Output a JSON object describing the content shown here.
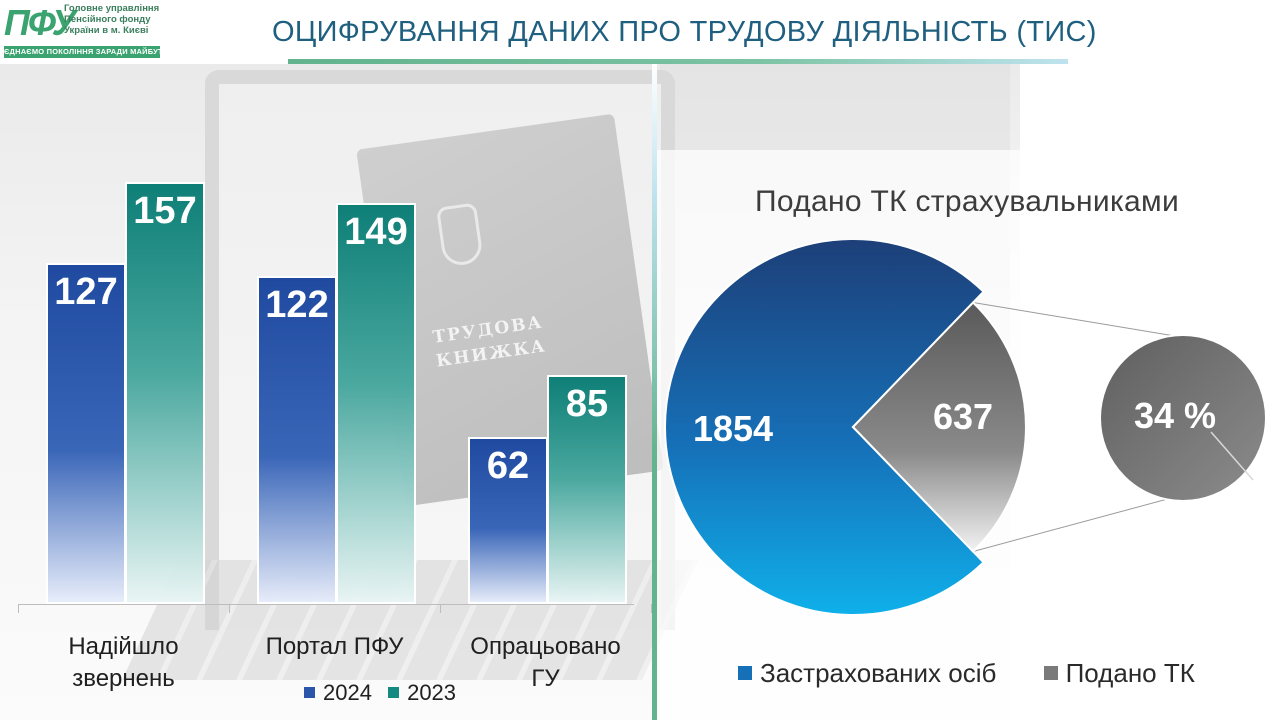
{
  "header": {
    "title": "ОЦИФРУВАННЯ ДАНИХ ПРО ТРУДОВУ ДІЯЛЬНІСТЬ (ТИС)",
    "logo": {
      "mark": "ПФУ",
      "line1": "Головне управління",
      "line2": "Пенсійного фонду",
      "line3": "України в м. Києві",
      "strip": "ЄДНАЄМО ПОКОЛІННЯ ЗАРАДИ МАЙБУТНЬОГО"
    }
  },
  "background": {
    "book_text_line1": "ТРУДОВА",
    "book_text_line2": "КНИЖКА"
  },
  "chart_data": [
    {
      "type": "bar",
      "categories": [
        "Надійшло звернень",
        "Портал ПФУ",
        "Опрацьовано ГУ"
      ],
      "series": [
        {
          "name": "2024",
          "values": [
            127,
            122,
            62
          ],
          "color": "#2b55a8"
        },
        {
          "name": "2023",
          "values": [
            157,
            149,
            85
          ],
          "color": "#14897f"
        }
      ],
      "ylim": [
        0,
        180
      ],
      "grid": false,
      "legend": "bottom",
      "labels_text": [
        "127",
        "157",
        "122",
        "149",
        "62",
        "85"
      ]
    },
    {
      "type": "pie",
      "title": "Подано ТК страхувальниками",
      "slices": [
        {
          "name": "Застрахованих осіб",
          "value": 1854,
          "label": "1854",
          "color": "#1670b8"
        },
        {
          "name": "Подано ТК",
          "value": 637,
          "label": "637",
          "color": "#7a7a7a"
        }
      ],
      "breakout": {
        "label": "34 %",
        "color": "#6b6b6b"
      },
      "legend": "bottom"
    }
  ]
}
